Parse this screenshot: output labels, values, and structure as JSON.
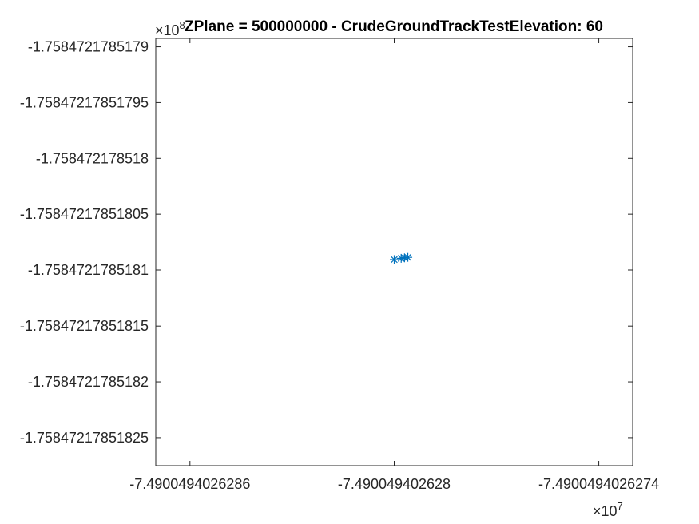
{
  "chart_data": {
    "type": "scatter",
    "title": "ZPlane = 500000000 - CrudeGroundTrackTestElevation: 60",
    "xlabel": "",
    "ylabel": "",
    "x_exponent": {
      "base": "×10",
      "power": "7"
    },
    "y_exponent": {
      "base": "×10",
      "power": "8"
    },
    "xlim": [
      -7.4900494026287,
      -7.4900494026273
    ],
    "ylim": [
      -1.758472178518275,
      -1.7584721785178925
    ],
    "x_ticks": [
      -7.4900494026286,
      -7.490049402628,
      -7.4900494026274
    ],
    "x_tick_labels": [
      "-7.4900494026286",
      "-7.490049402628",
      "-7.4900494026274"
    ],
    "y_ticks": [
      -1.7584721785179,
      -1.75847217851795,
      -1.758472178518,
      -1.75847217851805,
      -1.7584721785181,
      -1.75847217851815,
      -1.7584721785182,
      -1.75847217851825
    ],
    "y_tick_labels": [
      "-1.7584721785179",
      "-1.75847217851795",
      "-1.758472178518",
      "-1.75847217851805",
      "-1.7584721785181",
      "-1.75847217851815",
      "-1.7584721785182",
      "-1.75847217851825"
    ],
    "grid": false,
    "marker": "asterisk",
    "marker_color": "#0072BD",
    "series": [
      {
        "x": [
          -7.490049402628,
          -7.49004940262798,
          -7.49004940262797,
          -7.49004940262796
        ],
        "y": [
          -1.7584721785180906,
          -1.7584721785180895,
          -1.758472178518089,
          -1.7584721785180886
        ]
      }
    ]
  }
}
